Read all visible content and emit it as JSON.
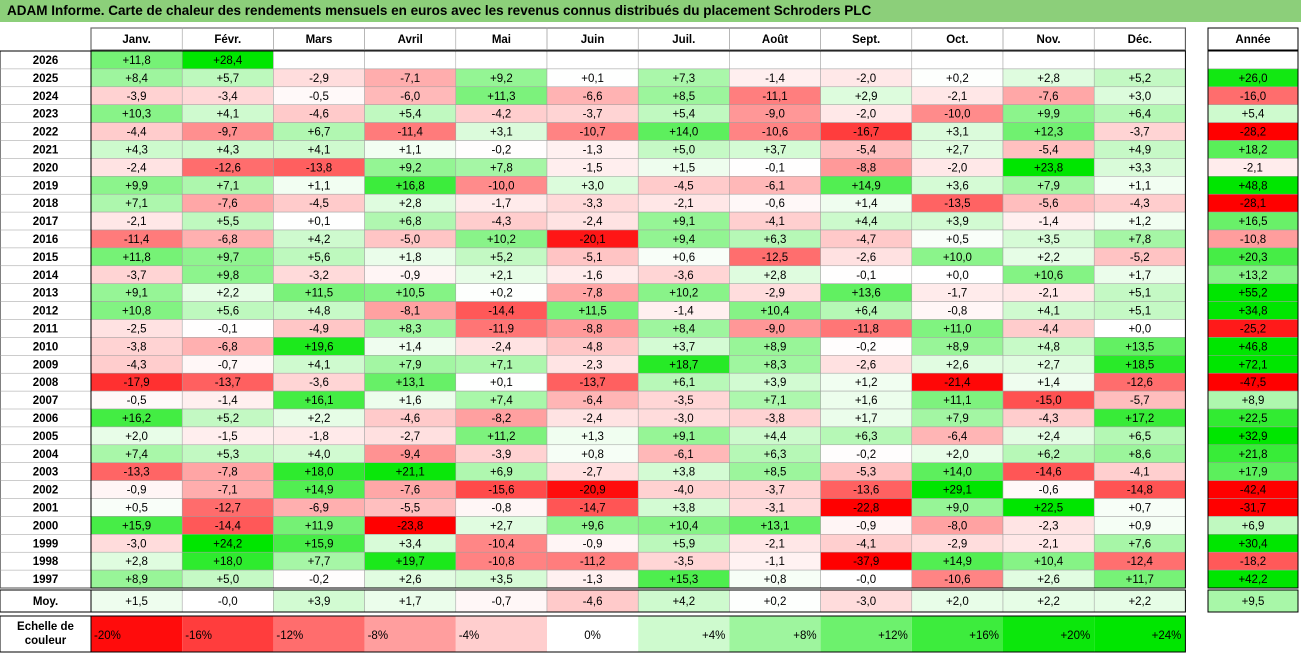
{
  "title": "ADAM Informe. Carte de chaleur des rendements mensuels en euros avec les revenus connus distribués du placement Schroders PLC",
  "colors": {
    "negative_max": "#ff0000",
    "positive_max": "#00e600",
    "title_bar": "#8ccf7a"
  },
  "chart_data": {
    "type": "heatmap",
    "columns": [
      "Janv.",
      "Févr.",
      "Mars",
      "Avril",
      "Mai",
      "Juin",
      "Juil.",
      "Août",
      "Sept.",
      "Oct.",
      "Nov.",
      "Déc."
    ],
    "year_label": "Année",
    "rows": [
      {
        "label": "2026",
        "values": [
          "+11,8",
          "+28,4",
          "",
          "",
          "",
          "",
          "",
          "",
          "",
          "",
          "",
          ""
        ],
        "year": ""
      },
      {
        "label": "2025",
        "values": [
          "+8,4",
          "+5,7",
          "-2,9",
          "-7,1",
          "+9,2",
          "+0,1",
          "+7,3",
          "-1,4",
          "-2,0",
          "+0,2",
          "+2,8",
          "+5,2"
        ],
        "year": "+26,0"
      },
      {
        "label": "2024",
        "values": [
          "-3,9",
          "-3,4",
          "-0,5",
          "-6,0",
          "+11,3",
          "-6,6",
          "+8,5",
          "-11,1",
          "+2,9",
          "-2,1",
          "-7,6",
          "+3,0"
        ],
        "year": "-16,0"
      },
      {
        "label": "2023",
        "values": [
          "+10,3",
          "+4,1",
          "-4,6",
          "+5,4",
          "-4,2",
          "-3,7",
          "+5,4",
          "-9,0",
          "-2,0",
          "-10,0",
          "+9,9",
          "+6,4"
        ],
        "year": "+5,4"
      },
      {
        "label": "2022",
        "values": [
          "-4,4",
          "-9,7",
          "+6,7",
          "-11,4",
          "+3,1",
          "-10,7",
          "+14,0",
          "-10,6",
          "-16,7",
          "+3,1",
          "+12,3",
          "-3,7"
        ],
        "year": "-28,2"
      },
      {
        "label": "2021",
        "values": [
          "+4,3",
          "+4,3",
          "+4,1",
          "+1,1",
          "-0,2",
          "-1,3",
          "+5,0",
          "+3,7",
          "-5,4",
          "+2,7",
          "-5,4",
          "+4,9"
        ],
        "year": "+18,2"
      },
      {
        "label": "2020",
        "values": [
          "-2,4",
          "-12,6",
          "-13,8",
          "+9,2",
          "+7,8",
          "-1,5",
          "+1,5",
          "-0,1",
          "-8,8",
          "-2,0",
          "+23,8",
          "+3,3"
        ],
        "year": "-2,1"
      },
      {
        "label": "2019",
        "values": [
          "+9,9",
          "+7,1",
          "+1,1",
          "+16,8",
          "-10,0",
          "+3,0",
          "-4,5",
          "-6,1",
          "+14,9",
          "+3,6",
          "+7,9",
          "+1,1"
        ],
        "year": "+48,8"
      },
      {
        "label": "2018",
        "values": [
          "+7,1",
          "-7,6",
          "-4,5",
          "+2,8",
          "-1,7",
          "-3,3",
          "-2,1",
          "-0,6",
          "+1,4",
          "-13,5",
          "-5,6",
          "-4,3"
        ],
        "year": "-28,1"
      },
      {
        "label": "2017",
        "values": [
          "-2,1",
          "+5,5",
          "+0,1",
          "+6,8",
          "-4,3",
          "-2,4",
          "+9,1",
          "-4,1",
          "+4,4",
          "+3,9",
          "-1,4",
          "+1,2"
        ],
        "year": "+16,5"
      },
      {
        "label": "2016",
        "values": [
          "-11,4",
          "-6,8",
          "+4,2",
          "-5,0",
          "+10,2",
          "-20,1",
          "+9,4",
          "+6,3",
          "-4,7",
          "+0,5",
          "+3,5",
          "+7,8"
        ],
        "year": "-10,8"
      },
      {
        "label": "2015",
        "values": [
          "+11,8",
          "+9,7",
          "+5,6",
          "+1,8",
          "+5,2",
          "-5,1",
          "+0,6",
          "-12,5",
          "-2,6",
          "+10,0",
          "+2,2",
          "-5,2"
        ],
        "year": "+20,3"
      },
      {
        "label": "2014",
        "values": [
          "-3,7",
          "+9,8",
          "-3,2",
          "-0,9",
          "+2,1",
          "-1,6",
          "-3,6",
          "+2,8",
          "-0,1",
          "+0,0",
          "+10,6",
          "+1,7"
        ],
        "year": "+13,2"
      },
      {
        "label": "2013",
        "values": [
          "+9,1",
          "+2,2",
          "+11,5",
          "+10,5",
          "+0,2",
          "-7,8",
          "+10,2",
          "-2,9",
          "+13,6",
          "-1,7",
          "-2,1",
          "+5,1"
        ],
        "year": "+55,2"
      },
      {
        "label": "2012",
        "values": [
          "+10,8",
          "+5,6",
          "+4,8",
          "-8,1",
          "-14,4",
          "+11,5",
          "-1,4",
          "+10,4",
          "+6,4",
          "-0,8",
          "+4,1",
          "+5,1"
        ],
        "year": "+34,8"
      },
      {
        "label": "2011",
        "values": [
          "-2,5",
          "-0,1",
          "-4,9",
          "+8,3",
          "-11,9",
          "-8,8",
          "+8,4",
          "-9,0",
          "-11,8",
          "+11,0",
          "-4,4",
          "+0,0"
        ],
        "year": "-25,2"
      },
      {
        "label": "2010",
        "values": [
          "-3,8",
          "-6,8",
          "+19,6",
          "+1,4",
          "-2,4",
          "-4,8",
          "+3,7",
          "+8,9",
          "-0,2",
          "+8,9",
          "+4,8",
          "+13,5"
        ],
        "year": "+46,8"
      },
      {
        "label": "2009",
        "values": [
          "-4,3",
          "-0,7",
          "+4,1",
          "+7,9",
          "+7,1",
          "-2,3",
          "+18,7",
          "+8,3",
          "-2,6",
          "+2,6",
          "+2,7",
          "+18,5"
        ],
        "year": "+72,1"
      },
      {
        "label": "2008",
        "values": [
          "-17,9",
          "-13,7",
          "-3,6",
          "+13,1",
          "+0,1",
          "-13,7",
          "+6,1",
          "+3,9",
          "+1,2",
          "-21,4",
          "+1,4",
          "-12,6"
        ],
        "year": "-47,5"
      },
      {
        "label": "2007",
        "values": [
          "-0,5",
          "-1,4",
          "+16,1",
          "+1,6",
          "+7,4",
          "-6,4",
          "-3,5",
          "+7,1",
          "+1,6",
          "+11,1",
          "-15,0",
          "-5,7"
        ],
        "year": "+8,9"
      },
      {
        "label": "2006",
        "values": [
          "+16,2",
          "+5,2",
          "+2,2",
          "-4,6",
          "-8,2",
          "-2,4",
          "-3,0",
          "-3,8",
          "+1,7",
          "+7,9",
          "-4,3",
          "+17,2"
        ],
        "year": "+22,5"
      },
      {
        "label": "2005",
        "values": [
          "+2,0",
          "-1,5",
          "-1,8",
          "-2,7",
          "+11,2",
          "+1,3",
          "+9,1",
          "+4,4",
          "+6,3",
          "-6,4",
          "+2,4",
          "+6,5"
        ],
        "year": "+32,9"
      },
      {
        "label": "2004",
        "values": [
          "+7,4",
          "+5,3",
          "+4,0",
          "-9,4",
          "-3,9",
          "+0,8",
          "-6,1",
          "+6,3",
          "-0,2",
          "+2,0",
          "+6,2",
          "+8,6"
        ],
        "year": "+21,8"
      },
      {
        "label": "2003",
        "values": [
          "-13,3",
          "-7,8",
          "+18,0",
          "+21,1",
          "+6,9",
          "-2,7",
          "+3,8",
          "+8,5",
          "-5,3",
          "+14,0",
          "-14,6",
          "-4,1"
        ],
        "year": "+17,9"
      },
      {
        "label": "2002",
        "values": [
          "-0,9",
          "-7,1",
          "+14,9",
          "-7,6",
          "-15,6",
          "-20,9",
          "-4,0",
          "-3,7",
          "-13,6",
          "+29,1",
          "-0,6",
          "-14,8"
        ],
        "year": "-42,4"
      },
      {
        "label": "2001",
        "values": [
          "+0,5",
          "-12,7",
          "-6,9",
          "-5,5",
          "-0,8",
          "-14,7",
          "+3,8",
          "-3,1",
          "-22,8",
          "+9,0",
          "+22,5",
          "+0,7"
        ],
        "year": "-31,7"
      },
      {
        "label": "2000",
        "values": [
          "+15,9",
          "-14,4",
          "+11,9",
          "-23,8",
          "+2,7",
          "+9,6",
          "+10,4",
          "+13,1",
          "-0,9",
          "-8,0",
          "-2,3",
          "+0,9"
        ],
        "year": "+6,9"
      },
      {
        "label": "1999",
        "values": [
          "-3,0",
          "+24,2",
          "+15,9",
          "+3,4",
          "-10,4",
          "-0,9",
          "+5,9",
          "-2,1",
          "-4,1",
          "-2,9",
          "-2,1",
          "+7,6"
        ],
        "year": "+30,4"
      },
      {
        "label": "1998",
        "values": [
          "+2,8",
          "+18,0",
          "+7,7",
          "+19,7",
          "-10,8",
          "-11,2",
          "-3,5",
          "-1,1",
          "-37,9",
          "+14,9",
          "+10,4",
          "-12,4"
        ],
        "year": "-18,2"
      },
      {
        "label": "1997",
        "values": [
          "+8,9",
          "+5,0",
          "-0,2",
          "+2,6",
          "+3,5",
          "-1,3",
          "+15,3",
          "+0,8",
          "-0,0",
          "-10,6",
          "+2,6",
          "+11,7"
        ],
        "year": "+42,2"
      }
    ],
    "average": {
      "label": "Moy.",
      "values": [
        "+1,5",
        "-0,0",
        "+3,9",
        "+1,7",
        "-0,7",
        "-4,6",
        "+4,2",
        "+0,2",
        "-3,0",
        "+2,0",
        "+2,2",
        "+2,2"
      ],
      "year": "+9,5"
    },
    "scale": {
      "label": "Echelle de couleur",
      "label_lines": [
        "Echelle de",
        "couleur"
      ],
      "stops": [
        {
          "value": -20,
          "label": "-20%"
        },
        {
          "value": -16,
          "label": "-16%"
        },
        {
          "value": -12,
          "label": "-12%"
        },
        {
          "value": -8,
          "label": "-8%"
        },
        {
          "value": -4,
          "label": "-4%"
        },
        {
          "value": 0,
          "label": "0%"
        },
        {
          "value": 4,
          "label": "+4%"
        },
        {
          "value": 8,
          "label": "+8%"
        },
        {
          "value": 12,
          "label": "+12%"
        },
        {
          "value": 16,
          "label": "+16%"
        },
        {
          "value": 20,
          "label": "+20%"
        },
        {
          "value": 24,
          "label": "+24%"
        }
      ]
    }
  }
}
